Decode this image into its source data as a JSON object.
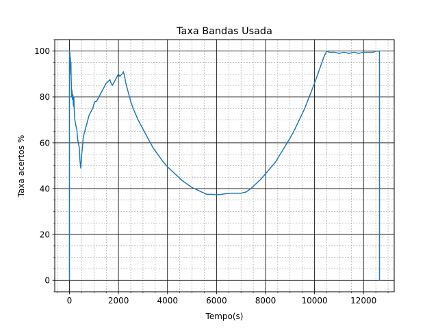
{
  "chart_data": {
    "type": "line",
    "title": "Taxa Bandas Usada",
    "xlabel": "Tempo(s)",
    "ylabel": "Taxa acertos %",
    "xlim": [
      -600,
      13250
    ],
    "ylim": [
      -5,
      105
    ],
    "xticks": [
      0,
      2000,
      4000,
      6000,
      8000,
      10000,
      12000
    ],
    "yticks": [
      0,
      20,
      40,
      60,
      80,
      100
    ],
    "x_minor_step": 500,
    "y_minor_step": 5,
    "grid": true,
    "line_color": "#1f77b4",
    "series": [
      {
        "x": [
          0,
          0,
          20,
          30,
          40,
          50,
          60,
          70,
          80,
          90,
          100,
          120,
          140,
          160,
          180,
          200,
          220,
          250,
          300,
          330,
          360,
          400,
          430,
          460,
          500,
          530,
          560,
          600,
          650,
          700,
          750,
          800,
          850,
          900,
          950,
          1000,
          1050,
          1100,
          1150,
          1200,
          1250,
          1300,
          1350,
          1400,
          1450,
          1500,
          1550,
          1600,
          1650,
          1700,
          1750,
          1800,
          1850,
          1900,
          1950,
          2000,
          2050,
          2100,
          2150,
          2200,
          2250,
          2300,
          2400,
          2500,
          2600,
          2800,
          3000,
          3200,
          3400,
          3600,
          3800,
          4000,
          4200,
          4400,
          4600,
          4800,
          5000,
          5200,
          5400,
          5600,
          5800,
          6000,
          6200,
          6400,
          6600,
          6800,
          7000,
          7200,
          7400,
          7600,
          7800,
          8000,
          8200,
          8400,
          8600,
          8800,
          9000,
          9200,
          9400,
          9600,
          9800,
          10000,
          10200,
          10400,
          10500,
          10600,
          10800,
          11000,
          11200,
          11400,
          11600,
          11800,
          12000,
          12200,
          12400,
          12500,
          12600,
          12640,
          12650,
          12650
        ],
        "y": [
          0,
          100,
          99,
          92,
          97,
          90,
          95,
          88,
          85,
          80,
          83,
          79,
          81,
          76,
          80,
          73,
          70,
          68,
          66,
          62,
          60,
          58,
          52,
          49,
          55,
          58,
          62,
          64,
          66,
          68,
          70,
          72,
          73,
          74,
          75,
          77,
          78,
          78,
          79,
          80,
          81,
          82,
          83,
          84,
          85,
          86,
          86.5,
          87,
          87.5,
          86,
          85,
          86,
          87,
          88,
          89,
          90,
          89,
          89.5,
          90,
          91,
          89,
          86,
          82,
          78,
          75,
          70,
          66,
          62,
          58,
          55,
          52,
          49.5,
          47.5,
          45.5,
          43.5,
          42,
          40.5,
          39.5,
          38.5,
          37.5,
          37.5,
          37.3,
          37.5,
          37.8,
          38,
          38,
          38,
          38.5,
          40,
          42,
          44,
          46.5,
          49,
          51.5,
          55,
          58.5,
          62,
          66,
          70.5,
          75,
          80.5,
          86,
          92,
          98,
          100,
          99.5,
          99.5,
          99,
          99.5,
          99,
          99.5,
          99,
          99.5,
          99.5,
          99.5,
          100,
          100,
          100,
          100,
          0
        ]
      }
    ]
  }
}
